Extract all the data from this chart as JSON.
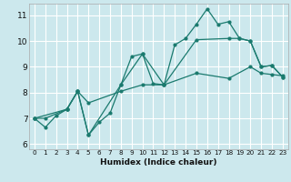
{
  "xlabel": "Humidex (Indice chaleur)",
  "bg_color": "#cce8ed",
  "grid_color": "#ffffff",
  "line_color": "#1a7a6e",
  "xlim": [
    -0.5,
    23.5
  ],
  "ylim": [
    5.8,
    11.45
  ],
  "xticks": [
    0,
    1,
    2,
    3,
    4,
    5,
    6,
    7,
    8,
    9,
    10,
    11,
    12,
    13,
    14,
    15,
    16,
    17,
    18,
    19,
    20,
    21,
    22,
    23
  ],
  "yticks": [
    6,
    7,
    8,
    9,
    10,
    11
  ],
  "curve1_x": [
    0,
    1,
    2,
    3,
    4,
    5,
    6,
    7,
    8,
    9,
    10,
    11,
    12,
    13,
    14,
    15,
    16,
    17,
    18,
    19,
    20,
    21,
    22,
    23
  ],
  "curve1_y": [
    7.0,
    6.65,
    7.1,
    7.35,
    8.05,
    6.35,
    6.85,
    7.2,
    8.3,
    9.4,
    9.5,
    8.35,
    8.3,
    9.85,
    10.1,
    10.65,
    11.25,
    10.65,
    10.75,
    10.1,
    10.0,
    9.0,
    9.05,
    8.6
  ],
  "curve2_x": [
    0,
    1,
    3,
    4,
    5,
    8,
    10,
    12,
    15,
    18,
    20,
    21,
    22,
    23
  ],
  "curve2_y": [
    7.0,
    7.0,
    7.35,
    8.05,
    7.6,
    8.05,
    8.3,
    8.3,
    8.75,
    8.55,
    9.0,
    8.75,
    8.7,
    8.65
  ],
  "curve3_x": [
    0,
    3,
    4,
    5,
    8,
    10,
    12,
    15,
    18,
    19,
    20,
    21,
    22,
    23
  ],
  "curve3_y": [
    7.0,
    7.35,
    8.05,
    6.35,
    8.3,
    9.5,
    8.3,
    10.05,
    10.1,
    10.1,
    10.0,
    9.0,
    9.05,
    8.6
  ],
  "marker_size": 2.0,
  "line_width": 0.9
}
